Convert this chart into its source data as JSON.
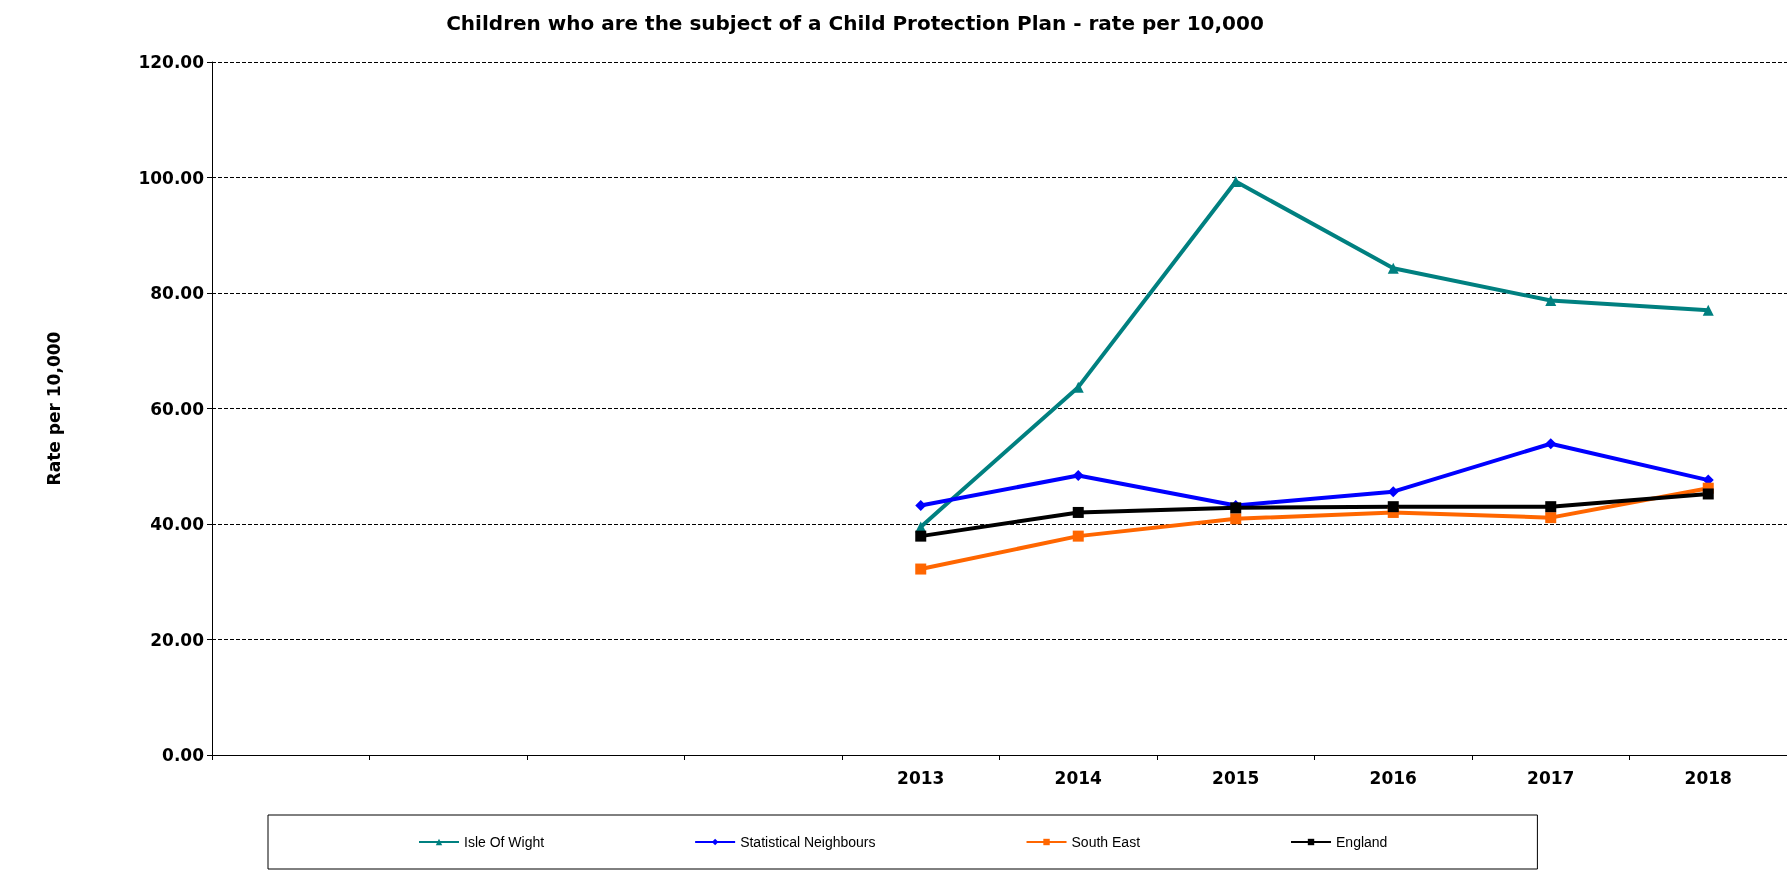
{
  "chart_data": {
    "type": "line",
    "title": "Children who are the subject of a Child Protection Plan - rate per 10,000",
    "ylabel": "Rate per 10,000",
    "categories": [
      null,
      null,
      null,
      null,
      "2013",
      "2014",
      "2015",
      "2016",
      "2017",
      "2018"
    ],
    "series": [
      {
        "name": "Isle Of Wight",
        "color": "#008080",
        "marker": "triangle",
        "values": [
          null,
          null,
          null,
          null,
          39.5,
          63.7,
          99.3,
          84.3,
          78.7,
          77.0
        ]
      },
      {
        "name": "Statistical Neighbours",
        "color": "#0000ff",
        "marker": "diamond",
        "values": [
          null,
          null,
          null,
          null,
          43.2,
          48.4,
          43.2,
          45.6,
          53.9,
          47.6
        ]
      },
      {
        "name": "South East",
        "color": "#ff6600",
        "marker": "square",
        "values": [
          null,
          null,
          null,
          null,
          32.2,
          37.9,
          40.9,
          42.0,
          41.1,
          46.2
        ]
      },
      {
        "name": "England",
        "color": "#000000",
        "marker": "square",
        "values": [
          null,
          null,
          null,
          null,
          37.9,
          42.0,
          42.8,
          43.0,
          43.0,
          45.2
        ]
      }
    ],
    "ylim": [
      0,
      120
    ],
    "yticks": [
      {
        "value": 0,
        "label": "0.00"
      },
      {
        "value": 20,
        "label": "20.00"
      },
      {
        "value": 40,
        "label": "40.00"
      },
      {
        "value": 60,
        "label": "60.00"
      },
      {
        "value": 80,
        "label": "80.00"
      },
      {
        "value": 100,
        "label": "100.00"
      },
      {
        "value": 120,
        "label": "120.00"
      }
    ],
    "grid": "y",
    "legend": "bottom"
  }
}
